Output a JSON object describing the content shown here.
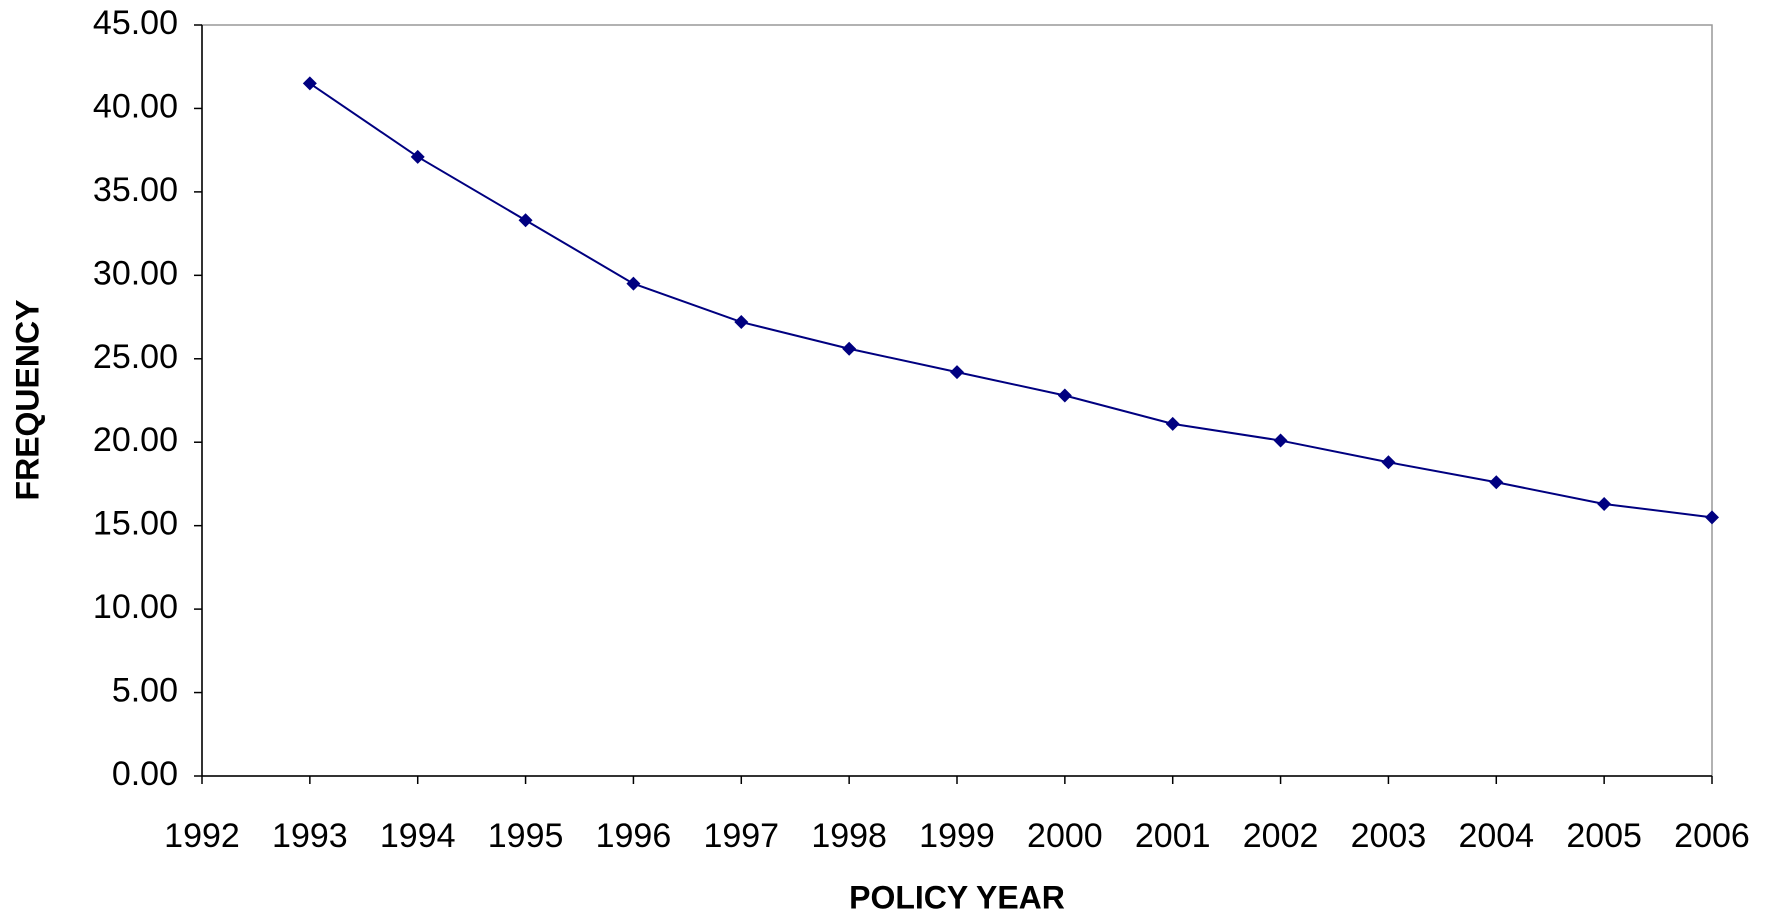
{
  "chart_data": {
    "type": "line",
    "x_label": "POLICY YEAR",
    "y_label": "FREQUENCY",
    "x": [
      1993,
      1994,
      1995,
      1996,
      1997,
      1998,
      1999,
      2000,
      2001,
      2002,
      2003,
      2004,
      2005,
      2006
    ],
    "series": [
      {
        "color": "#000080",
        "values": [
          41.5,
          37.1,
          33.3,
          29.5,
          27.2,
          25.6,
          24.2,
          22.8,
          21.1,
          20.1,
          18.8,
          17.6,
          16.3,
          15.5
        ]
      }
    ],
    "xlim": [
      1992,
      2006
    ],
    "xticks": [
      1992,
      1993,
      1994,
      1995,
      1996,
      1997,
      1998,
      1999,
      2000,
      2001,
      2002,
      2003,
      2004,
      2005,
      2006
    ],
    "ylim": [
      0,
      45
    ],
    "yticks": [
      {
        "value": 0,
        "label": "0.00"
      },
      {
        "value": 5,
        "label": "5.00"
      },
      {
        "value": 10,
        "label": "10.00"
      },
      {
        "value": 15,
        "label": "15.00"
      },
      {
        "value": 20,
        "label": "20.00"
      },
      {
        "value": 25,
        "label": "25.00"
      },
      {
        "value": 30,
        "label": "30.00"
      },
      {
        "value": 35,
        "label": "35.00"
      },
      {
        "value": 40,
        "label": "40.00"
      },
      {
        "value": 45,
        "label": "45.00"
      }
    ],
    "grid": false
  }
}
